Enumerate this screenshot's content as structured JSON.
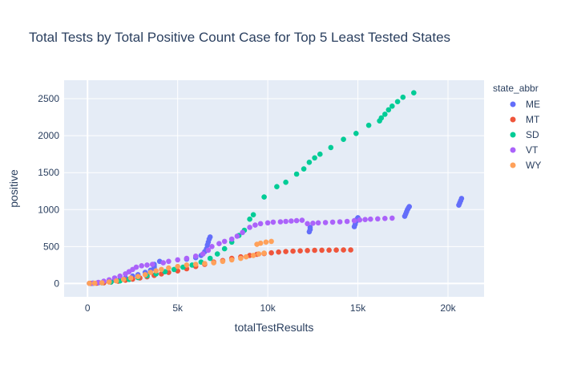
{
  "chart_data": {
    "type": "scatter",
    "title": "Total Tests by Total Positive Count Case for Top 5 Least Tested States",
    "xlabel": "totalTestResults",
    "ylabel": "positive",
    "xlim": [
      -1300,
      22000
    ],
    "ylim": [
      -180,
      2750
    ],
    "x_ticks": [
      0,
      5000,
      10000,
      15000,
      20000
    ],
    "x_tick_labels": [
      "0",
      "5k",
      "10k",
      "15k",
      "20k"
    ],
    "y_ticks": [
      0,
      500,
      1000,
      1500,
      2000,
      2500
    ],
    "y_tick_labels": [
      "0",
      "500",
      "1000",
      "1500",
      "2000",
      "2500"
    ],
    "grid": true,
    "legend": {
      "title": "state_abbr",
      "placement": "right"
    },
    "series": [
      {
        "name": "ME",
        "color": "#636efa",
        "points": [
          [
            100,
            2
          ],
          [
            300,
            5
          ],
          [
            600,
            10
          ],
          [
            900,
            18
          ],
          [
            1200,
            30
          ],
          [
            1500,
            45
          ],
          [
            1800,
            60
          ],
          [
            2100,
            75
          ],
          [
            2500,
            100
          ],
          [
            2800,
            120
          ],
          [
            3200,
            150
          ],
          [
            3500,
            180
          ],
          [
            3700,
            200
          ],
          [
            3700,
            220
          ],
          [
            3700,
            240
          ],
          [
            3700,
            260
          ],
          [
            4000,
            300
          ],
          [
            5500,
            330
          ],
          [
            6000,
            350
          ],
          [
            6300,
            380
          ],
          [
            6500,
            430
          ],
          [
            6600,
            470
          ],
          [
            6650,
            520
          ],
          [
            6700,
            560
          ],
          [
            6750,
            600
          ],
          [
            6800,
            630
          ],
          [
            12300,
            700
          ],
          [
            12350,
            730
          ],
          [
            12350,
            760
          ],
          [
            14800,
            770
          ],
          [
            14850,
            800
          ],
          [
            14900,
            840
          ],
          [
            14950,
            870
          ],
          [
            15000,
            890
          ],
          [
            17600,
            910
          ],
          [
            17650,
            940
          ],
          [
            17700,
            970
          ],
          [
            17750,
            1000
          ],
          [
            17800,
            1020
          ],
          [
            17850,
            1040
          ],
          [
            20600,
            1060
          ],
          [
            20650,
            1090
          ],
          [
            20700,
            1120
          ],
          [
            20750,
            1150
          ]
        ]
      },
      {
        "name": "MT",
        "color": "#ef553b",
        "points": [
          [
            200,
            2
          ],
          [
            500,
            5
          ],
          [
            900,
            10
          ],
          [
            1300,
            20
          ],
          [
            1700,
            30
          ],
          [
            2100,
            45
          ],
          [
            2500,
            60
          ],
          [
            2900,
            75
          ],
          [
            3300,
            90
          ],
          [
            3700,
            110
          ],
          [
            4100,
            130
          ],
          [
            4500,
            150
          ],
          [
            5000,
            170
          ],
          [
            5500,
            200
          ],
          [
            6000,
            230
          ],
          [
            6500,
            260
          ],
          [
            7000,
            290
          ],
          [
            7500,
            310
          ],
          [
            8000,
            340
          ],
          [
            8500,
            360
          ],
          [
            9000,
            380
          ],
          [
            9400,
            395
          ],
          [
            9800,
            405
          ],
          [
            10200,
            415
          ],
          [
            10600,
            425
          ],
          [
            11000,
            432
          ],
          [
            11400,
            438
          ],
          [
            11800,
            442
          ],
          [
            12200,
            446
          ],
          [
            12600,
            449
          ],
          [
            13000,
            450
          ],
          [
            13400,
            452
          ],
          [
            13800,
            453
          ],
          [
            14200,
            454
          ],
          [
            14600,
            455
          ]
        ]
      },
      {
        "name": "SD",
        "color": "#00cc96",
        "points": [
          [
            300,
            5
          ],
          [
            800,
            10
          ],
          [
            1300,
            20
          ],
          [
            1800,
            35
          ],
          [
            2300,
            55
          ],
          [
            2800,
            80
          ],
          [
            3300,
            105
          ],
          [
            3800,
            130
          ],
          [
            4300,
            160
          ],
          [
            4800,
            190
          ],
          [
            5300,
            220
          ],
          [
            5800,
            250
          ],
          [
            6300,
            290
          ],
          [
            6800,
            340
          ],
          [
            7200,
            400
          ],
          [
            7600,
            470
          ],
          [
            8000,
            560
          ],
          [
            8400,
            650
          ],
          [
            8700,
            720
          ],
          [
            9000,
            870
          ],
          [
            9200,
            930
          ],
          [
            9800,
            1170
          ],
          [
            10500,
            1310
          ],
          [
            11000,
            1370
          ],
          [
            11600,
            1480
          ],
          [
            12000,
            1550
          ],
          [
            12300,
            1640
          ],
          [
            12600,
            1700
          ],
          [
            12900,
            1750
          ],
          [
            13500,
            1840
          ],
          [
            14200,
            1950
          ],
          [
            14900,
            2030
          ],
          [
            15600,
            2140
          ],
          [
            16200,
            2200
          ],
          [
            16300,
            2240
          ],
          [
            16500,
            2290
          ],
          [
            16700,
            2350
          ],
          [
            16900,
            2400
          ],
          [
            17200,
            2460
          ],
          [
            17500,
            2520
          ],
          [
            18100,
            2580
          ]
        ]
      },
      {
        "name": "VT",
        "color": "#ab63fa",
        "points": [
          [
            300,
            5
          ],
          [
            600,
            15
          ],
          [
            900,
            30
          ],
          [
            1200,
            50
          ],
          [
            1500,
            75
          ],
          [
            1800,
            100
          ],
          [
            2100,
            130
          ],
          [
            2300,
            160
          ],
          [
            2500,
            190
          ],
          [
            2700,
            220
          ],
          [
            3000,
            240
          ],
          [
            3300,
            250
          ],
          [
            3600,
            260
          ],
          [
            4200,
            280
          ],
          [
            4500,
            300
          ],
          [
            5000,
            320
          ],
          [
            5500,
            340
          ],
          [
            6000,
            370
          ],
          [
            6400,
            400
          ],
          [
            6700,
            450
          ],
          [
            6900,
            500
          ],
          [
            7300,
            540
          ],
          [
            7600,
            570
          ],
          [
            8000,
            600
          ],
          [
            8300,
            640
          ],
          [
            8600,
            690
          ],
          [
            9000,
            760
          ],
          [
            9300,
            790
          ],
          [
            9600,
            810
          ],
          [
            10000,
            820
          ],
          [
            10300,
            830
          ],
          [
            10700,
            835
          ],
          [
            11000,
            840
          ],
          [
            11300,
            845
          ],
          [
            11600,
            850
          ],
          [
            11900,
            855
          ],
          [
            12200,
            810
          ],
          [
            12500,
            815
          ],
          [
            12800,
            820
          ],
          [
            13200,
            825
          ],
          [
            13600,
            830
          ],
          [
            14000,
            835
          ],
          [
            14400,
            840
          ],
          [
            14800,
            850
          ],
          [
            15100,
            860
          ],
          [
            15400,
            865
          ],
          [
            15700,
            870
          ],
          [
            16100,
            875
          ],
          [
            16500,
            880
          ],
          [
            16900,
            885
          ]
        ]
      },
      {
        "name": "WY",
        "color": "#ffa15a",
        "points": [
          [
            100,
            2
          ],
          [
            400,
            5
          ],
          [
            800,
            10
          ],
          [
            1200,
            20
          ],
          [
            1600,
            35
          ],
          [
            2000,
            55
          ],
          [
            2400,
            75
          ],
          [
            2800,
            95
          ],
          [
            3200,
            120
          ],
          [
            3500,
            150
          ],
          [
            3800,
            170
          ],
          [
            4100,
            190
          ],
          [
            4500,
            210
          ],
          [
            5000,
            230
          ],
          [
            5500,
            250
          ],
          [
            6000,
            260
          ],
          [
            6500,
            270
          ],
          [
            7000,
            280
          ],
          [
            7500,
            300
          ],
          [
            8000,
            320
          ],
          [
            8500,
            340
          ],
          [
            8800,
            360
          ],
          [
            9200,
            380
          ],
          [
            9500,
            400
          ],
          [
            9800,
            410
          ],
          [
            9400,
            530
          ],
          [
            9600,
            545
          ],
          [
            9900,
            560
          ],
          [
            10200,
            570
          ]
        ]
      }
    ]
  }
}
